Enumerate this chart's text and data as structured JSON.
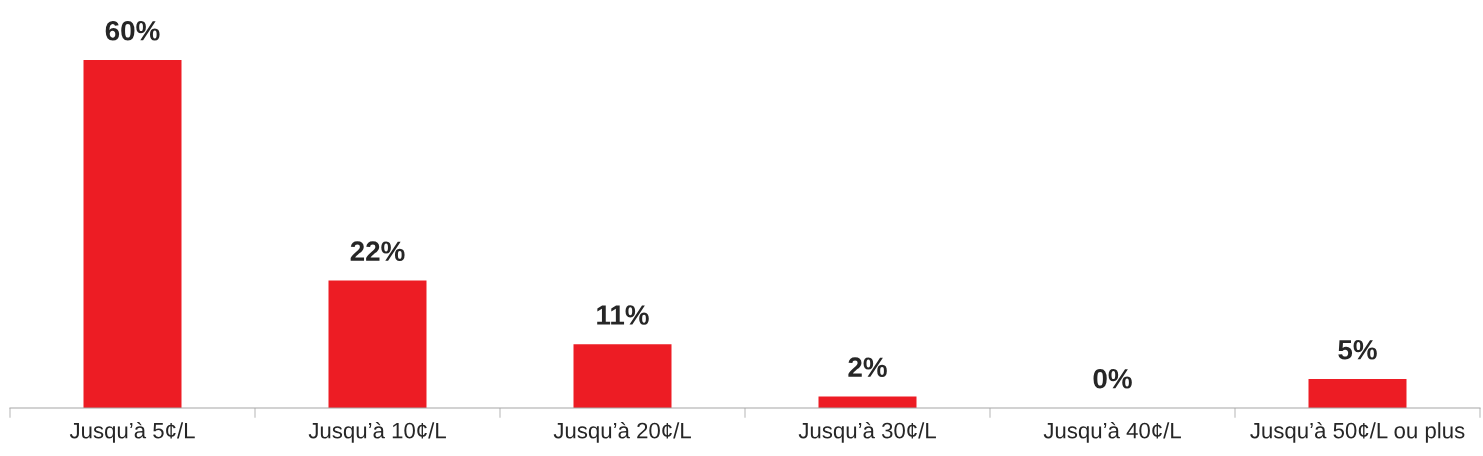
{
  "chart_data": {
    "type": "bar",
    "categories": [
      "Jusqu’à 5¢/L",
      "Jusqu’à 10¢/L",
      "Jusqu’à 20¢/L",
      "Jusqu’à 30¢/L",
      "Jusqu’à 40¢/L",
      "Jusqu’à 50¢/L ou plus"
    ],
    "values": [
      60,
      22,
      11,
      2,
      0,
      5
    ],
    "value_labels": [
      "60%",
      "22%",
      "11%",
      "2%",
      "0%",
      "5%"
    ],
    "color": "#ed1c24",
    "grid": false,
    "legend": false
  }
}
